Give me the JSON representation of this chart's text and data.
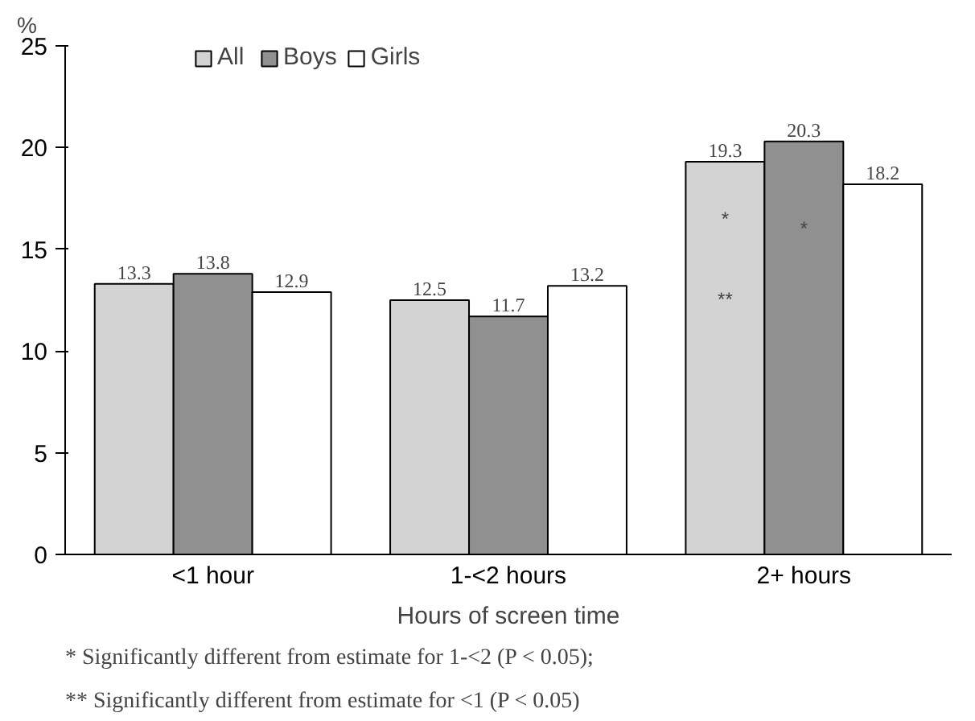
{
  "chart_data": {
    "type": "bar",
    "ylabel": "%",
    "xlabel": "Hours of screen time",
    "categories": [
      "<1 hour",
      "1-<2 hours",
      "2+ hours"
    ],
    "series": [
      {
        "name": "All",
        "color": "#d3d3d3",
        "values": [
          13.3,
          12.5,
          19.3
        ]
      },
      {
        "name": "Boys",
        "color": "#909090",
        "values": [
          13.8,
          11.7,
          20.3
        ]
      },
      {
        "name": "Girls",
        "color": "#ffffff",
        "values": [
          12.9,
          13.2,
          18.2
        ]
      }
    ],
    "ylim": [
      0,
      25
    ],
    "yticks": [
      0,
      5,
      10,
      15,
      20,
      25
    ],
    "data_labels": true,
    "legend": "top left",
    "grid": false,
    "annotations": [
      "*",
      "*",
      "**",
      "* Significantly different from estimate for 1-<2 (P < 0.05);",
      "** Significantly different from estimate for <1 (P < 0.05)"
    ]
  }
}
